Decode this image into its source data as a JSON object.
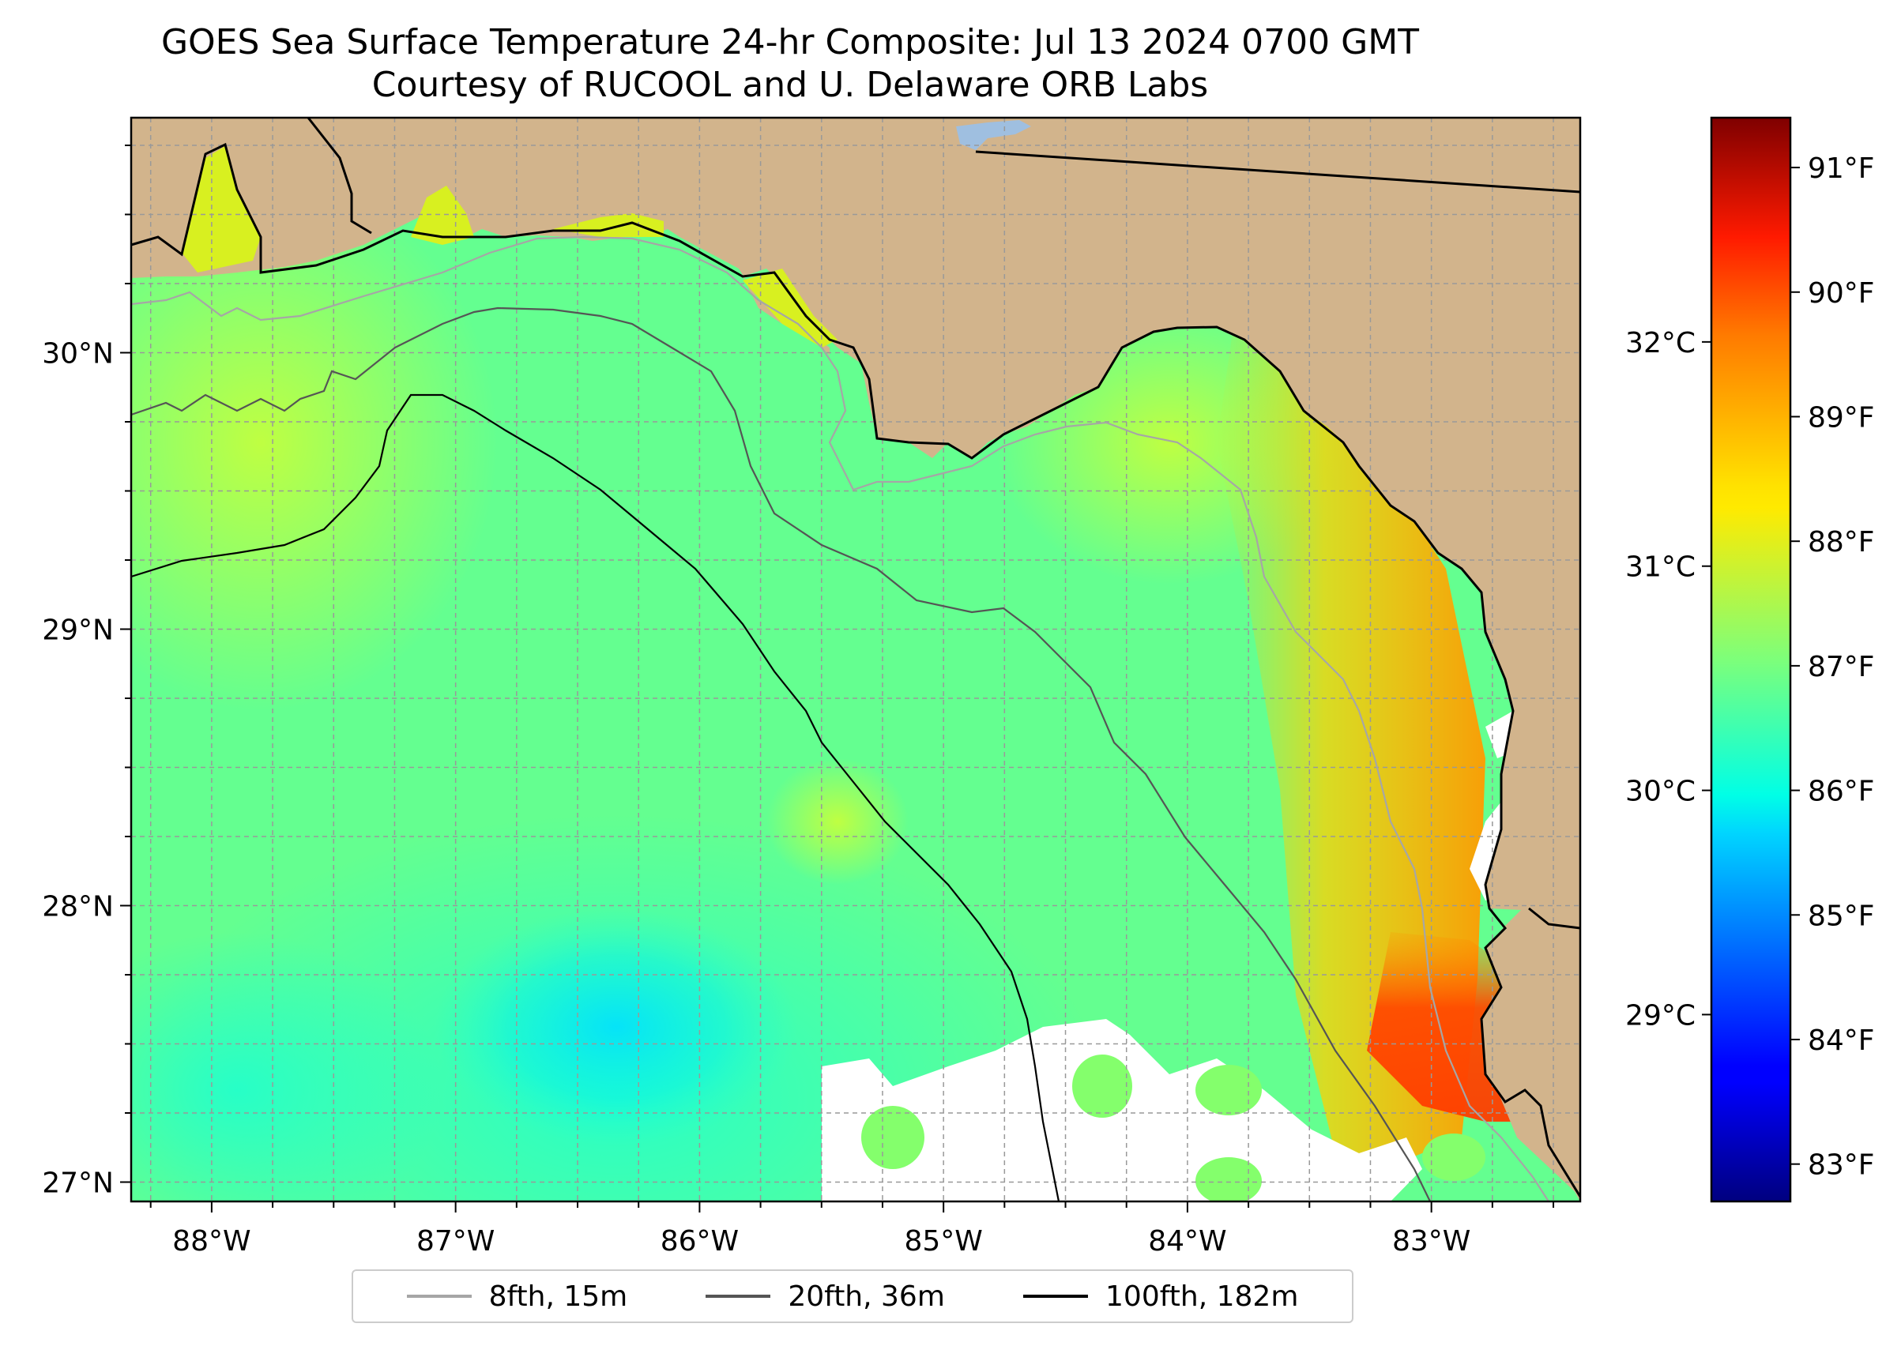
{
  "title": "GOES Sea Surface Temperature 24-hr Composite: Jul 13 2024 0700 GMT",
  "subtitle": "Courtesy of RUCOOL and U. Delaware ORB Labs",
  "map": {
    "extent": {
      "lon_min": -88.33,
      "lon_max": -82.39,
      "lat_min": 26.93,
      "lat_max": 30.85
    },
    "x_tick_labels": [
      "88°W",
      "87°W",
      "86°W",
      "85°W",
      "84°W",
      "83°W"
    ],
    "x_tick_values": [
      -88,
      -87,
      -86,
      -85,
      -84,
      -83
    ],
    "y_tick_labels": [
      "27°N",
      "28°N",
      "29°N",
      "30°N"
    ],
    "y_tick_values": [
      27,
      28,
      29,
      30
    ],
    "land_color": "#d2b48c",
    "lake_color": "#9fbfe0",
    "gridlines": true
  },
  "legend": {
    "placement": "bottom-center",
    "items": [
      {
        "label": "8fth, 15m",
        "color": "#a6a6a6"
      },
      {
        "label": "20fth, 36m",
        "color": "#555555"
      },
      {
        "label": "100fth, 182m",
        "color": "#000000"
      }
    ]
  },
  "colorbar": {
    "colormap": "jet",
    "f_min": 82.7,
    "f_max": 91.4,
    "f_tick_labels": [
      "83°F",
      "84°F",
      "85°F",
      "86°F",
      "87°F",
      "88°F",
      "89°F",
      "90°F",
      "91°F"
    ],
    "f_tick_values": [
      83,
      84,
      85,
      86,
      87,
      88,
      89,
      90,
      91
    ],
    "c_tick_labels": [
      "29°C",
      "30°C",
      "31°C",
      "32°C"
    ],
    "c_tick_values": [
      29,
      30,
      31,
      32
    ]
  }
}
